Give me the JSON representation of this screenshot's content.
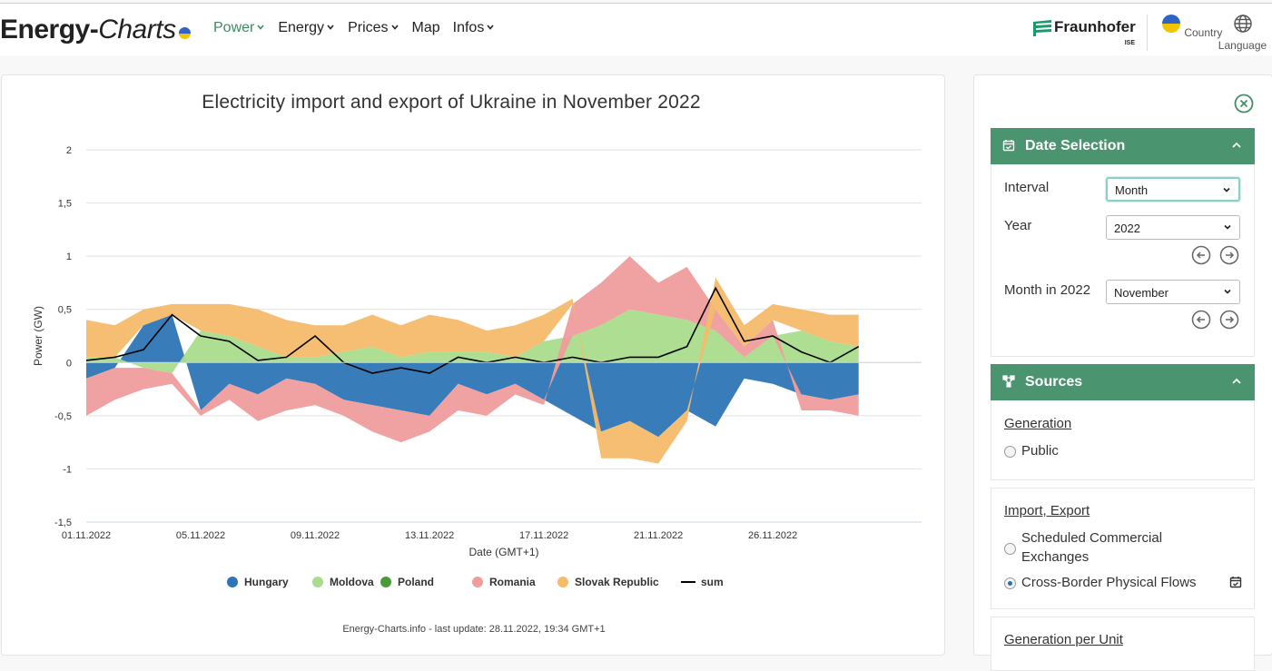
{
  "header": {
    "logo_bold": "Energy-",
    "logo_italic": "Charts",
    "nav": [
      {
        "label": "Power",
        "dropdown": true,
        "active": true
      },
      {
        "label": "Energy",
        "dropdown": true,
        "active": false
      },
      {
        "label": "Prices",
        "dropdown": true,
        "active": false
      },
      {
        "label": "Map",
        "dropdown": false,
        "active": false
      },
      {
        "label": "Infos",
        "dropdown": true,
        "active": false
      }
    ],
    "brand_name": "Fraunhofer",
    "brand_sub": "ISE",
    "country_label": "Country",
    "language_label": "Language"
  },
  "chart": {
    "source_note": "Energy-Charts.info - last update: 28.11.2022, 19:34 GMT+1"
  },
  "chart_data": {
    "type": "area",
    "title": "Electricity import and export of Ukraine in November 2022",
    "xlabel": "Date (GMT+1)",
    "ylabel": "Power (GW)",
    "ylim": [
      -1.5,
      2
    ],
    "yticks": [
      "2",
      "1,5",
      "1",
      "0,5",
      "0",
      "-0,5",
      "-1",
      "-1,5"
    ],
    "xticks": [
      "01.11.2022",
      "05.11.2022",
      "09.11.2022",
      "13.11.2022",
      "17.11.2022",
      "21.11.2022",
      "26.11.2022"
    ],
    "x_days": [
      1,
      2,
      3,
      4,
      5,
      6,
      7,
      8,
      9,
      10,
      11,
      12,
      13,
      14,
      15,
      16,
      17,
      18,
      19,
      20,
      21,
      22,
      23,
      24,
      25,
      26,
      27,
      28
    ],
    "legend_position": "bottom",
    "grid": true,
    "series": [
      {
        "name": "Hungary",
        "color": "#2e75b6",
        "values": [
          -0.15,
          -0.05,
          0.35,
          0.45,
          -0.45,
          -0.2,
          -0.3,
          -0.15,
          -0.2,
          -0.35,
          -0.4,
          -0.45,
          -0.5,
          -0.2,
          -0.3,
          -0.2,
          -0.35,
          -0.5,
          -0.65,
          -0.55,
          -0.7,
          -0.45,
          -0.6,
          -0.15,
          -0.2,
          -0.3,
          -0.35,
          -0.3
        ]
      },
      {
        "name": "Moldova",
        "color": "#a9dc8c",
        "values": [
          0.05,
          0.05,
          -0.05,
          -0.1,
          0.3,
          0.25,
          0.15,
          0.05,
          0.05,
          0.1,
          0.15,
          0.05,
          0.1,
          0.1,
          0.1,
          0.05,
          0.2,
          0.25,
          0.35,
          0.5,
          0.45,
          0.4,
          0.3,
          0.05,
          0.25,
          0.3,
          0.2,
          0.15
        ]
      },
      {
        "name": "Poland",
        "color": "#4a9a3a",
        "values": [
          0,
          0,
          0,
          0,
          0,
          0,
          0,
          0,
          0,
          0,
          0,
          0,
          0,
          0,
          0,
          0,
          0,
          0,
          0,
          0,
          0,
          0,
          0,
          0,
          0,
          0,
          0,
          0
        ]
      },
      {
        "name": "Romania",
        "color": "#ef9c9c",
        "values": [
          -0.35,
          -0.3,
          -0.2,
          -0.1,
          -0.05,
          -0.15,
          -0.25,
          -0.3,
          -0.2,
          -0.15,
          -0.25,
          -0.3,
          -0.15,
          -0.25,
          -0.2,
          -0.1,
          -0.05,
          0.3,
          0.4,
          0.5,
          0.3,
          0.5,
          0.2,
          0.1,
          0.15,
          -0.15,
          -0.1,
          -0.2
        ]
      },
      {
        "name": "Slovak Republic",
        "color": "#f4bb6a",
        "values": [
          0.35,
          0.3,
          0.15,
          0.1,
          0.25,
          0.3,
          0.35,
          0.35,
          0.3,
          0.25,
          0.3,
          0.3,
          0.35,
          0.3,
          0.2,
          0.3,
          0.25,
          0.05,
          -0.25,
          -0.35,
          -0.25,
          -0.1,
          0.3,
          0.2,
          0.15,
          0.2,
          0.25,
          0.3
        ]
      },
      {
        "name": "sum",
        "color": "#000000",
        "values": [
          0.02,
          0.05,
          0.12,
          0.45,
          0.25,
          0.2,
          0.02,
          0.05,
          0.25,
          0.0,
          -0.1,
          -0.05,
          -0.1,
          0.05,
          0.0,
          0.05,
          0.0,
          0.05,
          0.0,
          0.05,
          0.05,
          0.15,
          0.7,
          0.2,
          0.25,
          0.1,
          0.0,
          0.15
        ]
      }
    ]
  },
  "panel": {
    "date_section_title": "Date Selection",
    "interval_label": "Interval",
    "interval_value": "Month",
    "year_label": "Year",
    "year_value": "2022",
    "month_label": "Month in 2022",
    "month_value": "November",
    "sources_title": "Sources",
    "generation_link": "Generation",
    "public_label": "Public",
    "import_export_link": "Import, Export",
    "sched_label_1": "Scheduled Commercial",
    "sched_label_2": "Exchanges",
    "cross_label": "Cross-Border Physical Flows",
    "gen_per_unit_link": "Generation per Unit"
  }
}
